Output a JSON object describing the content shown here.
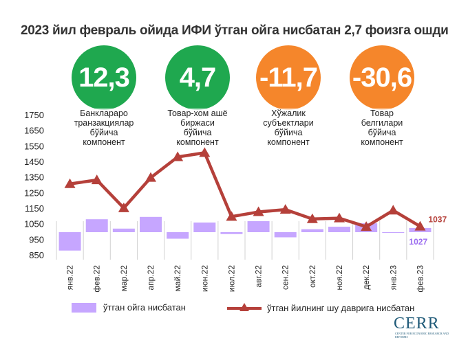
{
  "title": "2023 йил февраль ойида ИФИ ўтган ойга нисбатан 2,7 фоизга ошди",
  "kpis": [
    {
      "value": "12,3",
      "color": "#1fa84f",
      "label": "Банклараро\nтранзакциялар\nбўйича\nкомпонент"
    },
    {
      "value": "4,7",
      "color": "#1fa84f",
      "label": "Товар-хом ашё\nбиржаси\nбўйича\nкомпонент"
    },
    {
      "value": "-11,7",
      "color": "#f5862b",
      "label": "Хўжалик\nсубъектлари\nбўйича\nкомпонент"
    },
    {
      "value": "-30,6",
      "color": "#f5862b",
      "label": "Товар\nбелгилари\nбўйича\nкомпонент"
    }
  ],
  "chart_data": {
    "type": "bar+line",
    "baseline": 1000,
    "ylim": [
      850,
      1750
    ],
    "yticks": [
      850,
      950,
      1050,
      1150,
      1250,
      1350,
      1450,
      1550,
      1650,
      1750
    ],
    "categories": [
      "янв.22",
      "фев.22",
      "мар.22",
      "апр.22",
      "май.22",
      "июн.22",
      "июл.22",
      "авг.22",
      "сен.22",
      "окт.22",
      "ноя.22",
      "дек.22",
      "янв.23",
      "фев.23"
    ],
    "series": [
      {
        "name": "ўтган ойга нисбатан",
        "type": "bar",
        "color": "#c6a6ff",
        "values": [
          882,
          1083,
          1023,
          1098,
          958,
          1062,
          988,
          1071,
          967,
          1019,
          1035,
          1057,
          1000,
          1027
        ]
      },
      {
        "name": "ўтган йилнинг шу даврига нисбатан",
        "type": "line",
        "color": "#b5403a",
        "values": [
          1310,
          1335,
          1155,
          1350,
          1483,
          1510,
          1100,
          1130,
          1145,
          1085,
          1090,
          1035,
          1140,
          1037
        ]
      }
    ],
    "labels": {
      "bar_last": "1027",
      "line_last": "1037"
    },
    "label_colors": {
      "bar_last": "#9b6cf0",
      "line_last": "#b5403a"
    }
  },
  "legend": {
    "bar": "ўтган ойга нисбатан",
    "line": "ўтган йилнинг шу даврига нисбатан"
  },
  "logo": {
    "name": "CERR",
    "sub": "CENTER FOR ECONOMIC RESEARCH AND REFORMS"
  }
}
